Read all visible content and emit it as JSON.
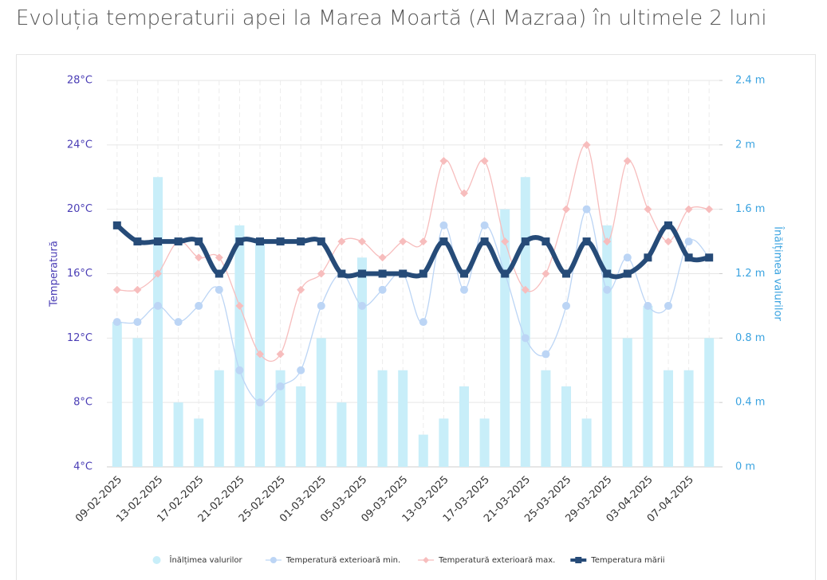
{
  "chart_data": {
    "type": "combo",
    "title": "Evoluția temperaturii apei la Marea Moartă (Al Mazraa) în ultimele 2 luni",
    "y_label": "Temperatură",
    "y2_label": "Înălțimea valurilor",
    "categories": [
      "09-02-2025",
      null,
      "13-02-2025",
      null,
      "17-02-2025",
      null,
      "21-02-2025",
      null,
      "25-02-2025",
      null,
      "01-03-2025",
      null,
      "05-03-2025",
      null,
      "09-03-2025",
      null,
      "13-03-2025",
      null,
      "17-03-2025",
      null,
      "21-03-2025",
      null,
      "25-03-2025",
      null,
      "29-03-2025",
      null,
      "03-04-2025",
      null,
      "07-04-2025",
      null
    ],
    "ylim": [
      4,
      28
    ],
    "yticks": [
      {
        "value": 4,
        "label": "4°C"
      },
      {
        "value": 8,
        "label": "8°C"
      },
      {
        "value": 12,
        "label": "12°C"
      },
      {
        "value": 16,
        "label": "16°C"
      },
      {
        "value": 20,
        "label": "20°C"
      },
      {
        "value": 24,
        "label": "24°C"
      },
      {
        "value": 28,
        "label": "28°C"
      }
    ],
    "y2lim": [
      0,
      2.4
    ],
    "y2ticks": [
      {
        "value": 0,
        "label": "0 m"
      },
      {
        "value": 0.4,
        "label": "0.4 m"
      },
      {
        "value": 0.8,
        "label": "0.8 m"
      },
      {
        "value": 1.2,
        "label": "1.2 m"
      },
      {
        "value": 1.6,
        "label": "1.6 m"
      },
      {
        "value": 2,
        "label": "2 m"
      },
      {
        "value": 2.4,
        "label": "2.4 m"
      }
    ],
    "grid": true,
    "legend": "bottom",
    "series": [
      {
        "name": "Înălțimea valurilor",
        "kind": "bar",
        "axis": "y2",
        "color": "#c8eef9",
        "values": [
          0.9,
          0.8,
          1.8,
          0.4,
          0.3,
          0.6,
          1.5,
          1.4,
          0.6,
          0.5,
          0.8,
          0.4,
          1.3,
          0.6,
          0.6,
          0.2,
          0.3,
          0.5,
          0.3,
          1.6,
          1.8,
          0.6,
          0.5,
          0.3,
          1.5,
          0.8,
          1.0,
          0.6,
          0.6,
          0.8
        ]
      },
      {
        "name": "Temperatură exterioară min.",
        "kind": "line",
        "marker": "circle",
        "color": "#bcd5f5",
        "values": [
          13,
          13,
          14,
          13,
          14,
          15,
          10,
          8,
          9,
          10,
          14,
          16,
          14,
          15,
          16,
          13,
          19,
          15,
          19,
          16,
          12,
          11,
          14,
          20,
          15,
          17,
          14,
          14,
          18,
          17
        ]
      },
      {
        "name": "Temperatură exterioară max.",
        "kind": "line",
        "marker": "diamond",
        "color": "#f7bdbd",
        "values": [
          15,
          15,
          16,
          18,
          17,
          17,
          14,
          11,
          11,
          15,
          16,
          18,
          18,
          17,
          18,
          18,
          23,
          21,
          23,
          18,
          15,
          16,
          20,
          24,
          18,
          23,
          20,
          18,
          20,
          20
        ]
      },
      {
        "name": "Temperatura mării",
        "kind": "line",
        "marker": "square",
        "color": "#264b78",
        "values": [
          19,
          18,
          18,
          18,
          18,
          16,
          18,
          18,
          18,
          18,
          18,
          16,
          16,
          16,
          16,
          16,
          18,
          16,
          18,
          16,
          18,
          18,
          16,
          18,
          16,
          16,
          17,
          19,
          17,
          17
        ]
      }
    ]
  }
}
